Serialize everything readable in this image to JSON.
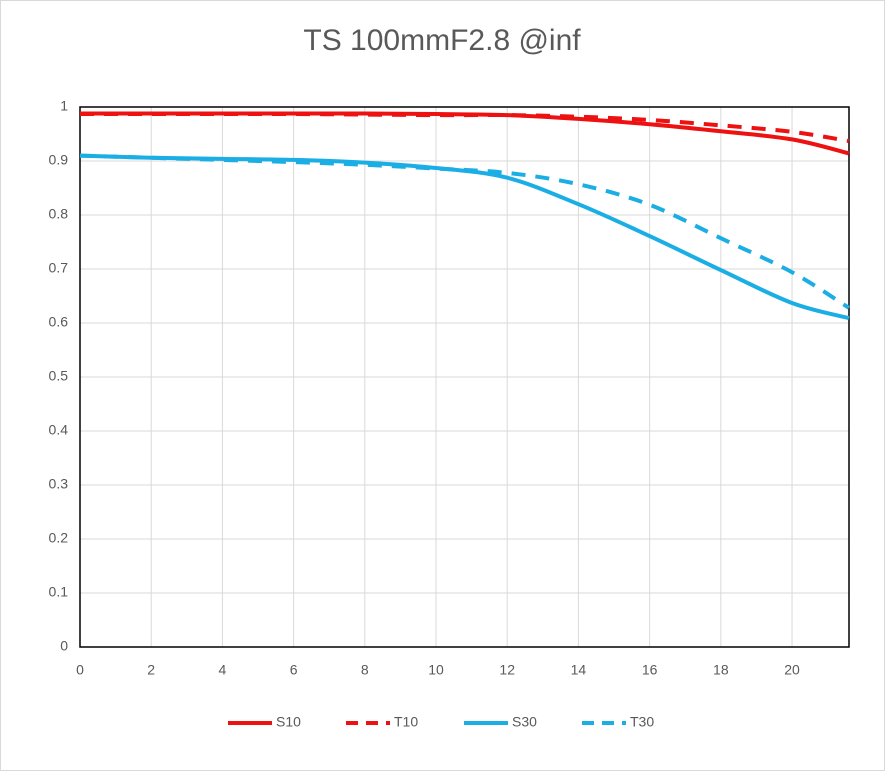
{
  "chart_data": {
    "type": "line",
    "title": "TS 100mmF2.8 @inf",
    "x": [
      0,
      2,
      4,
      6,
      8,
      10,
      12,
      14,
      16,
      18,
      20,
      21.6
    ],
    "series": [
      {
        "name": "S10",
        "color": "#ee1111",
        "dash": false,
        "values": [
          0.988,
          0.988,
          0.988,
          0.988,
          0.988,
          0.987,
          0.985,
          0.978,
          0.968,
          0.955,
          0.94,
          0.914
        ]
      },
      {
        "name": "T10",
        "color": "#ee1111",
        "dash": true,
        "values": [
          0.987,
          0.987,
          0.987,
          0.987,
          0.986,
          0.985,
          0.985,
          0.982,
          0.976,
          0.966,
          0.954,
          0.937
        ]
      },
      {
        "name": "S30",
        "color": "#1aaee5",
        "dash": false,
        "values": [
          0.91,
          0.906,
          0.904,
          0.902,
          0.897,
          0.887,
          0.869,
          0.82,
          0.761,
          0.698,
          0.637,
          0.609
        ]
      },
      {
        "name": "T30",
        "color": "#1aaee5",
        "dash": true,
        "values": [
          0.91,
          0.906,
          0.902,
          0.898,
          0.893,
          0.886,
          0.878,
          0.857,
          0.819,
          0.757,
          0.694,
          0.628
        ]
      }
    ],
    "xlim": [
      0,
      21.6
    ],
    "xticks": [
      0,
      2,
      4,
      6,
      8,
      10,
      12,
      14,
      16,
      18,
      20
    ],
    "ylim": [
      0,
      1
    ],
    "yticks": [
      0,
      0.1,
      0.2,
      0.3,
      0.4,
      0.5,
      0.6,
      0.7,
      0.8,
      0.9,
      1
    ],
    "grid": true,
    "legend": "bottom"
  }
}
